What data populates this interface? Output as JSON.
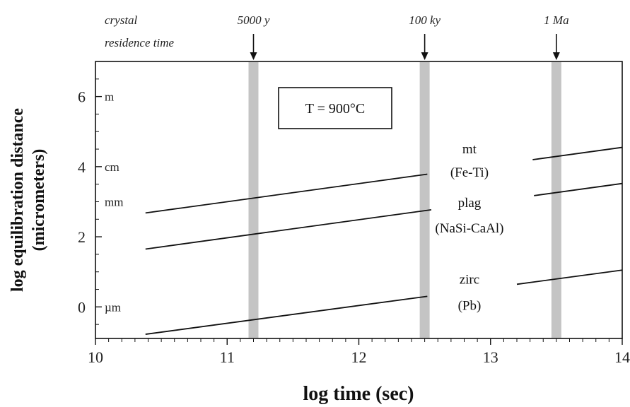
{
  "chart_data": {
    "type": "line",
    "xlabel": "log time (sec)",
    "ylabel": "log equilibration distance",
    "ylabel_sub": "(micrometers)",
    "xlim": [
      10,
      14
    ],
    "ylim": [
      -0.9,
      7
    ],
    "xticks": [
      "10",
      "11",
      "12",
      "13",
      "14"
    ],
    "yticks": [
      "0",
      "2",
      "4",
      "6"
    ],
    "temperature_box": "T = 900°C",
    "residence_label": [
      "crystal",
      "residence time"
    ],
    "residence_markers": [
      {
        "label": "5000 y",
        "x": 11.2
      },
      {
        "label": "100 ky",
        "x": 12.5
      },
      {
        "label": "1 Ma",
        "x": 13.5
      }
    ],
    "y_unit_labels": [
      {
        "label": "m",
        "y": 6
      },
      {
        "label": "cm",
        "y": 4
      },
      {
        "label": "mm",
        "y": 3
      },
      {
        "label": "µm",
        "y": 0
      }
    ],
    "series": [
      {
        "name_line1": "mt",
        "name_line2": "(Fe-Ti)",
        "x": [
          10.38,
          14.0
        ],
        "y": [
          2.68,
          4.55
        ]
      },
      {
        "name_line1": "plag",
        "name_line2": "(NaSi-CaAl)",
        "x": [
          10.38,
          14.0
        ],
        "y": [
          1.65,
          3.52
        ]
      },
      {
        "name_line1": "zirc",
        "name_line2": "(Pb)",
        "x": [
          10.38,
          14.0
        ],
        "y": [
          -0.78,
          1.05
        ]
      }
    ],
    "colors": {
      "line": "#111111",
      "band": "#c4c4c4"
    }
  }
}
